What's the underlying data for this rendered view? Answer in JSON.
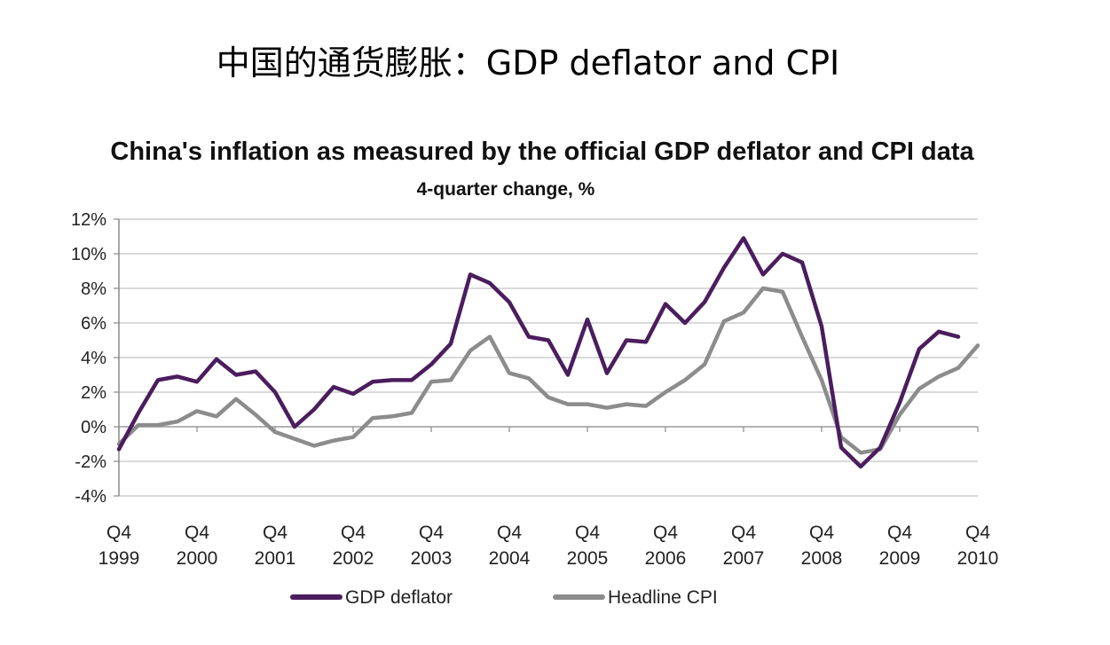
{
  "slide_title": "中国的通货膨胀：GDP deflator and CPI",
  "chart_data": {
    "type": "line",
    "title": "China's inflation as measured by the official GDP deflator and CPI data",
    "subtitle": "4-quarter change, %",
    "xlabel": "",
    "ylabel": "",
    "ylim": [
      -4,
      12
    ],
    "y_ticks": [
      -4,
      -2,
      0,
      2,
      4,
      6,
      8,
      10,
      12
    ],
    "y_tick_labels": [
      "-4%",
      "-2%",
      "0%",
      "2%",
      "4%",
      "6%",
      "8%",
      "10%",
      "12%"
    ],
    "x_tick_labels": [
      {
        "q": "Q4",
        "year": "1999"
      },
      {
        "q": "Q4",
        "year": "2000"
      },
      {
        "q": "Q4",
        "year": "2001"
      },
      {
        "q": "Q4",
        "year": "2002"
      },
      {
        "q": "Q4",
        "year": "2003"
      },
      {
        "q": "Q4",
        "year": "2004"
      },
      {
        "q": "Q4",
        "year": "2005"
      },
      {
        "q": "Q4",
        "year": "2006"
      },
      {
        "q": "Q4",
        "year": "2007"
      },
      {
        "q": "Q4",
        "year": "2008"
      },
      {
        "q": "Q4",
        "year": "2009"
      },
      {
        "q": "Q4",
        "year": "2010"
      }
    ],
    "grid": true,
    "legend_position": "bottom",
    "series": [
      {
        "name": "GDP deflator",
        "color": "#4b1d5e",
        "x": [
          "1999Q4",
          "2000Q1",
          "2000Q2",
          "2000Q3",
          "2000Q4",
          "2001Q1",
          "2001Q2",
          "2001Q3",
          "2001Q4",
          "2002Q1",
          "2002Q2",
          "2002Q3",
          "2002Q4",
          "2003Q1",
          "2003Q2",
          "2003Q3",
          "2003Q4",
          "2004Q1",
          "2004Q2",
          "2004Q3",
          "2004Q4",
          "2005Q1",
          "2005Q2",
          "2005Q3",
          "2005Q4",
          "2006Q1",
          "2006Q2",
          "2006Q3",
          "2006Q4",
          "2007Q1",
          "2007Q2",
          "2007Q3",
          "2007Q4",
          "2008Q1",
          "2008Q2",
          "2008Q3",
          "2008Q4",
          "2009Q1",
          "2009Q2",
          "2009Q3",
          "2009Q4",
          "2010Q1",
          "2010Q2",
          "2010Q3"
        ],
        "values": [
          -1.3,
          0.8,
          2.7,
          2.9,
          2.6,
          3.9,
          3.0,
          3.2,
          2.0,
          0.0,
          1.0,
          2.3,
          1.9,
          2.6,
          2.7,
          2.7,
          3.6,
          4.8,
          8.8,
          8.3,
          7.2,
          5.2,
          5.0,
          3.0,
          6.2,
          3.1,
          5.0,
          4.9,
          7.1,
          6.0,
          7.2,
          9.2,
          10.9,
          8.8,
          10.0,
          9.5,
          5.8,
          -1.2,
          -2.3,
          -1.2,
          1.4,
          4.5,
          5.5,
          5.2
        ]
      },
      {
        "name": "Headline CPI",
        "color": "#8c8c8c",
        "x": [
          "1999Q4",
          "2000Q1",
          "2000Q2",
          "2000Q3",
          "2000Q4",
          "2001Q1",
          "2001Q2",
          "2001Q3",
          "2001Q4",
          "2002Q1",
          "2002Q2",
          "2002Q3",
          "2002Q4",
          "2003Q1",
          "2003Q2",
          "2003Q3",
          "2003Q4",
          "2004Q1",
          "2004Q2",
          "2004Q3",
          "2004Q4",
          "2005Q1",
          "2005Q2",
          "2005Q3",
          "2005Q4",
          "2006Q1",
          "2006Q2",
          "2006Q3",
          "2006Q4",
          "2007Q1",
          "2007Q2",
          "2007Q3",
          "2007Q4",
          "2008Q1",
          "2008Q2",
          "2008Q3",
          "2008Q4",
          "2009Q1",
          "2009Q2",
          "2009Q3",
          "2009Q4",
          "2010Q1",
          "2010Q2",
          "2010Q3",
          "2010Q4"
        ],
        "values": [
          -1.0,
          0.1,
          0.1,
          0.3,
          0.9,
          0.6,
          1.6,
          0.7,
          -0.3,
          -0.7,
          -1.1,
          -0.8,
          -0.6,
          0.5,
          0.6,
          0.8,
          2.6,
          2.7,
          4.4,
          5.2,
          3.1,
          2.8,
          1.7,
          1.3,
          1.3,
          1.1,
          1.3,
          1.2,
          2.0,
          2.7,
          3.6,
          6.1,
          6.6,
          8.0,
          7.8,
          5.2,
          2.7,
          -0.6,
          -1.5,
          -1.3,
          0.7,
          2.2,
          2.9,
          3.4,
          4.7
        ]
      }
    ]
  }
}
